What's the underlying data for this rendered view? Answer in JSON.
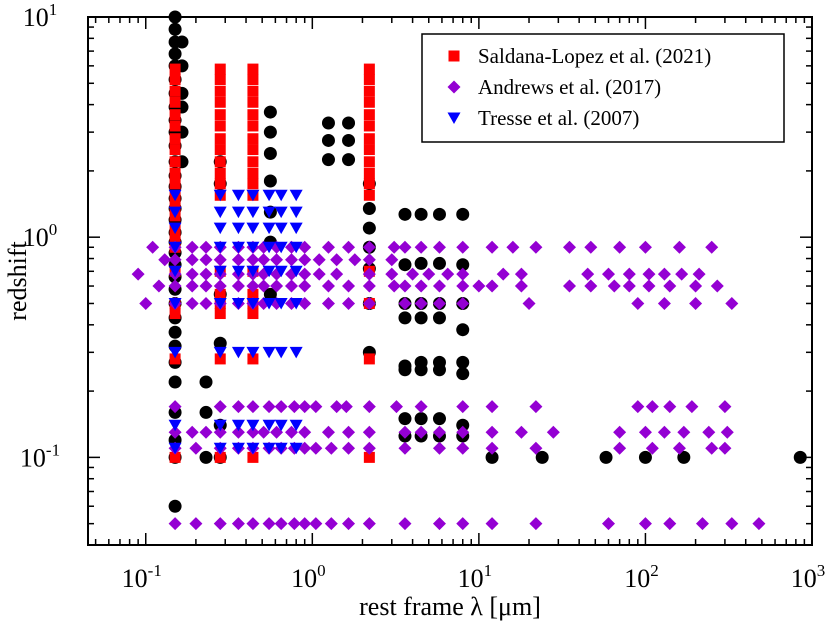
{
  "chart_data": {
    "type": "scatter",
    "xlabel": "rest frame λ [μm]",
    "ylabel": "redshift",
    "xscale": "log",
    "yscale": "log",
    "xlim": [
      0.045,
      1000
    ],
    "ylim": [
      0.04,
      10
    ],
    "legend_position": "top-right",
    "x_ticks": [
      {
        "value": 0.1,
        "base": "10",
        "exp": "-1"
      },
      {
        "value": 1,
        "base": "10",
        "exp": "0"
      },
      {
        "value": 10,
        "base": "10",
        "exp": "1"
      },
      {
        "value": 100,
        "base": "10",
        "exp": "2"
      },
      {
        "value": 1000,
        "base": "10",
        "exp": "3"
      }
    ],
    "y_ticks": [
      {
        "value": 0.1,
        "base": "10",
        "exp": "-1"
      },
      {
        "value": 1,
        "base": "10",
        "exp": "0"
      },
      {
        "value": 10,
        "base": "10",
        "exp": "1"
      }
    ],
    "series": [
      {
        "name": "unlabeled",
        "marker": "circle",
        "color": "#000000",
        "in_legend": false,
        "x": [
          0.15,
          0.15,
          0.15,
          0.15,
          0.15,
          0.15,
          0.15,
          0.15,
          0.15,
          0.15,
          0.15,
          0.15,
          0.15,
          0.15,
          0.15,
          0.15,
          0.15,
          0.15,
          0.15,
          0.15,
          0.15,
          0.15,
          0.15,
          0.15,
          0.15,
          0.15,
          0.15,
          0.15,
          0.15,
          0.15,
          0.15,
          0.15,
          0.15,
          0.165,
          0.165,
          0.165,
          0.165,
          0.165,
          0.165,
          0.28,
          0.28,
          0.28,
          0.28,
          0.28,
          0.28,
          0.23,
          0.23,
          0.23,
          0.56,
          0.56,
          0.56,
          0.56,
          0.56,
          0.56,
          0.56,
          1.25,
          1.25,
          1.25,
          1.65,
          1.65,
          1.65,
          2.2,
          2.2,
          2.2,
          2.2,
          2.2,
          2.2,
          2.2,
          3.6,
          4.5,
          5.8,
          8.0,
          3.6,
          4.5,
          5.8,
          8.0,
          3.6,
          4.5,
          5.8,
          8.0,
          3.6,
          4.5,
          5.8,
          8.0,
          3.6,
          4.5,
          5.8,
          8.0,
          3.6,
          4.5,
          5.8,
          8.0,
          3.6,
          4.5,
          5.8,
          8.0,
          3.6,
          4.5,
          5.8,
          8.0,
          12,
          24,
          58,
          100,
          170,
          850
        ],
        "y": [
          10,
          8.8,
          7.7,
          6.8,
          6.0,
          5.2,
          4.5,
          3.9,
          3.4,
          3.0,
          2.6,
          2.2,
          1.9,
          1.7,
          1.5,
          1.35,
          1.2,
          1.05,
          0.95,
          0.85,
          0.75,
          0.66,
          0.58,
          0.5,
          0.43,
          0.37,
          0.32,
          0.27,
          0.22,
          0.16,
          0.12,
          0.1,
          0.06,
          7.7,
          6.0,
          4.5,
          3.9,
          3.0,
          2.2,
          2.2,
          1.75,
          0.55,
          0.33,
          0.14,
          0.1,
          0.22,
          0.16,
          0.1,
          3.7,
          3.0,
          2.4,
          1.8,
          1.3,
          0.95,
          0.55,
          3.3,
          2.75,
          2.25,
          3.3,
          2.75,
          2.25,
          1.75,
          1.35,
          1.1,
          0.9,
          0.72,
          0.5,
          0.3,
          1.27,
          1.27,
          1.27,
          1.27,
          0.75,
          0.76,
          0.76,
          0.75,
          0.5,
          0.5,
          0.5,
          0.5,
          0.43,
          0.43,
          0.43,
          0.38,
          0.26,
          0.27,
          0.27,
          0.27,
          0.25,
          0.25,
          0.25,
          0.24,
          0.15,
          0.15,
          0.15,
          0.14,
          0.125,
          0.125,
          0.125,
          0.125,
          0.1,
          0.1,
          0.1,
          0.1,
          0.1,
          0.1
        ]
      },
      {
        "name": "Saldana-Lopez et al. (2021)",
        "marker": "square",
        "color": "#ff0000",
        "in_legend": true,
        "x": [
          0.15,
          0.15,
          0.15,
          0.15,
          0.15,
          0.15,
          0.15,
          0.15,
          0.15,
          0.15,
          0.15,
          0.15,
          0.15,
          0.15,
          0.15,
          0.15,
          0.15,
          0.15,
          0.15,
          0.15,
          0.15,
          0.15,
          0.28,
          0.28,
          0.28,
          0.28,
          0.28,
          0.28,
          0.28,
          0.28,
          0.28,
          0.28,
          0.28,
          0.28,
          0.28,
          0.28,
          0.28,
          0.28,
          0.28,
          0.28,
          0.44,
          0.44,
          0.44,
          0.44,
          0.44,
          0.44,
          0.44,
          0.44,
          0.44,
          0.44,
          0.44,
          0.44,
          0.44,
          0.44,
          0.44,
          0.44,
          0.44,
          0.44,
          2.2,
          2.2,
          2.2,
          2.2,
          2.2,
          2.2,
          2.2,
          2.2,
          2.2,
          2.2,
          2.2,
          2.2,
          2.2,
          2.2,
          2.2,
          2.2
        ],
        "y": [
          5.8,
          5.2,
          4.6,
          4.1,
          3.6,
          3.2,
          2.8,
          2.5,
          2.2,
          1.95,
          1.75,
          1.55,
          1.4,
          1.25,
          1.1,
          1.0,
          0.9,
          0.7,
          0.5,
          0.45,
          0.28,
          0.1,
          5.8,
          5.2,
          4.6,
          4.1,
          3.6,
          3.2,
          2.8,
          2.5,
          2.2,
          1.95,
          1.75,
          1.55,
          0.7,
          0.55,
          0.5,
          0.45,
          0.28,
          0.1,
          5.8,
          5.2,
          4.6,
          4.1,
          3.6,
          3.2,
          2.8,
          2.5,
          2.2,
          1.95,
          1.75,
          1.55,
          0.7,
          0.55,
          0.5,
          0.45,
          0.28,
          0.1,
          5.8,
          5.2,
          4.6,
          4.1,
          3.6,
          3.2,
          2.8,
          2.5,
          2.2,
          1.95,
          1.75,
          1.55,
          0.7,
          0.5,
          0.28,
          0.1
        ]
      },
      {
        "name": "Andrews et al. (2017)",
        "marker": "diamond",
        "color": "#9400d3",
        "in_legend": true,
        "x": [
          0.11,
          0.15,
          0.19,
          0.23,
          0.28,
          0.36,
          0.44,
          0.51,
          0.61,
          0.75,
          0.9,
          1.25,
          1.65,
          2.2,
          3.1,
          3.6,
          4.5,
          5.8,
          8.0,
          12,
          16,
          22,
          35,
          47,
          70,
          100,
          160,
          250,
          0.13,
          0.15,
          0.19,
          0.23,
          0.28,
          0.36,
          0.44,
          0.51,
          0.61,
          0.75,
          0.9,
          1.1,
          1.4,
          1.8,
          2.2,
          3.0,
          0.09,
          0.15,
          0.19,
          0.23,
          0.28,
          0.36,
          0.44,
          0.51,
          0.61,
          0.75,
          0.9,
          1.1,
          1.4,
          2.2,
          3.0,
          4.0,
          5.0,
          6.5,
          8.0,
          14,
          18,
          45,
          60,
          80,
          105,
          130,
          165,
          210,
          0.12,
          0.15,
          0.19,
          0.23,
          0.28,
          0.36,
          0.44,
          0.51,
          0.61,
          0.75,
          0.9,
          1.25,
          1.65,
          2.2,
          3.1,
          3.6,
          4.5,
          5.8,
          8.0,
          10,
          12,
          18,
          35,
          47,
          65,
          80,
          105,
          140,
          200,
          270,
          0.1,
          0.15,
          0.19,
          0.23,
          0.28,
          0.36,
          0.44,
          0.51,
          0.61,
          0.75,
          0.9,
          1.25,
          1.65,
          2.2,
          3.6,
          4.5,
          5.8,
          8.0,
          20,
          90,
          130,
          200,
          330,
          0.15,
          0.28,
          0.36,
          0.44,
          0.55,
          0.65,
          0.78,
          0.9,
          1.05,
          1.4,
          1.6,
          2.2,
          3.2,
          4.5,
          8.0,
          12,
          22,
          90,
          110,
          140,
          190,
          300,
          0.15,
          0.19,
          0.23,
          0.28,
          0.36,
          0.44,
          0.51,
          0.61,
          0.75,
          0.9,
          1.25,
          1.65,
          2.2,
          3.6,
          4.5,
          5.8,
          8.0,
          12,
          18,
          28,
          70,
          100,
          130,
          170,
          240,
          310,
          0.15,
          0.2,
          0.28,
          0.36,
          0.44,
          0.55,
          0.65,
          0.78,
          0.9,
          1.05,
          1.3,
          1.65,
          2.2,
          3.6,
          5.8,
          8.0,
          12,
          22,
          70,
          110,
          160,
          250,
          300,
          0.15,
          0.2,
          0.28,
          0.36,
          0.44,
          0.55,
          0.65,
          0.78,
          0.9,
          1.05,
          1.3,
          1.65,
          2.2,
          3.6,
          5.8,
          8.0,
          12,
          22,
          60,
          100,
          140,
          220,
          330,
          480
        ],
        "y": [
          0.9,
          0.9,
          0.9,
          0.9,
          0.9,
          0.9,
          0.9,
          0.9,
          0.9,
          0.9,
          0.9,
          0.9,
          0.9,
          0.9,
          0.9,
          0.9,
          0.9,
          0.9,
          0.9,
          0.9,
          0.9,
          0.9,
          0.9,
          0.9,
          0.9,
          0.9,
          0.9,
          0.9,
          0.79,
          0.79,
          0.79,
          0.79,
          0.79,
          0.79,
          0.79,
          0.79,
          0.79,
          0.79,
          0.79,
          0.79,
          0.79,
          0.79,
          0.79,
          0.79,
          0.68,
          0.68,
          0.68,
          0.68,
          0.68,
          0.68,
          0.68,
          0.68,
          0.68,
          0.68,
          0.68,
          0.68,
          0.68,
          0.68,
          0.68,
          0.68,
          0.68,
          0.68,
          0.68,
          0.68,
          0.68,
          0.68,
          0.68,
          0.68,
          0.68,
          0.68,
          0.68,
          0.68,
          0.6,
          0.6,
          0.6,
          0.6,
          0.6,
          0.6,
          0.6,
          0.6,
          0.6,
          0.6,
          0.6,
          0.6,
          0.6,
          0.6,
          0.6,
          0.6,
          0.6,
          0.6,
          0.6,
          0.6,
          0.6,
          0.6,
          0.6,
          0.6,
          0.6,
          0.6,
          0.6,
          0.6,
          0.6,
          0.6,
          0.5,
          0.5,
          0.5,
          0.5,
          0.5,
          0.5,
          0.5,
          0.5,
          0.5,
          0.5,
          0.5,
          0.5,
          0.5,
          0.5,
          0.5,
          0.5,
          0.5,
          0.5,
          0.5,
          0.5,
          0.5,
          0.5,
          0.5,
          0.17,
          0.17,
          0.17,
          0.17,
          0.17,
          0.17,
          0.17,
          0.17,
          0.17,
          0.17,
          0.17,
          0.17,
          0.17,
          0.17,
          0.17,
          0.17,
          0.17,
          0.17,
          0.17,
          0.17,
          0.17,
          0.17,
          0.13,
          0.13,
          0.13,
          0.13,
          0.13,
          0.13,
          0.13,
          0.13,
          0.13,
          0.13,
          0.13,
          0.13,
          0.13,
          0.13,
          0.13,
          0.13,
          0.13,
          0.13,
          0.13,
          0.13,
          0.13,
          0.13,
          0.13,
          0.13,
          0.13,
          0.13,
          0.11,
          0.11,
          0.11,
          0.11,
          0.11,
          0.11,
          0.11,
          0.11,
          0.11,
          0.11,
          0.11,
          0.11,
          0.11,
          0.11,
          0.11,
          0.11,
          0.11,
          0.11,
          0.11,
          0.11,
          0.11,
          0.11,
          0.11,
          0.05,
          0.05,
          0.05,
          0.05,
          0.05,
          0.05,
          0.05,
          0.05,
          0.05,
          0.05,
          0.05,
          0.05,
          0.05,
          0.05,
          0.05,
          0.05,
          0.05,
          0.05,
          0.05,
          0.05,
          0.05,
          0.05,
          0.05,
          0.05
        ]
      },
      {
        "name": "Tresse et al. (2007)",
        "marker": "triangle-down",
        "color": "#0000ff",
        "in_legend": true,
        "x": [
          0.15,
          0.28,
          0.36,
          0.44,
          0.55,
          0.65,
          0.8,
          0.15,
          0.28,
          0.36,
          0.44,
          0.55,
          0.65,
          0.8,
          0.15,
          0.28,
          0.36,
          0.44,
          0.55,
          0.65,
          0.8,
          0.15,
          0.28,
          0.36,
          0.44,
          0.55,
          0.65,
          0.8,
          0.15,
          0.28,
          0.36,
          0.44,
          0.55,
          0.65,
          0.8,
          0.15,
          0.28,
          0.36,
          0.44,
          0.55,
          0.65,
          0.8,
          0.15,
          0.28,
          0.36,
          0.44,
          0.55,
          0.65,
          0.8,
          0.15,
          0.28,
          0.36,
          0.44,
          0.55,
          0.65,
          0.8,
          0.15,
          0.28,
          0.36,
          0.44,
          0.55,
          0.65,
          0.8
        ],
        "y": [
          1.55,
          1.55,
          1.55,
          1.55,
          1.55,
          1.55,
          1.55,
          1.3,
          1.3,
          1.3,
          1.3,
          1.3,
          1.3,
          1.3,
          1.1,
          1.1,
          1.1,
          1.1,
          1.1,
          1.1,
          1.1,
          0.9,
          0.9,
          0.9,
          0.9,
          0.9,
          0.9,
          0.9,
          0.7,
          0.7,
          0.7,
          0.7,
          0.7,
          0.7,
          0.7,
          0.5,
          0.5,
          0.5,
          0.5,
          0.5,
          0.5,
          0.5,
          0.3,
          0.3,
          0.3,
          0.3,
          0.3,
          0.3,
          0.3,
          0.14,
          0.14,
          0.14,
          0.14,
          0.14,
          0.14,
          0.14,
          0.11,
          0.11,
          0.11,
          0.11,
          0.11,
          0.11,
          0.11
        ]
      }
    ]
  }
}
